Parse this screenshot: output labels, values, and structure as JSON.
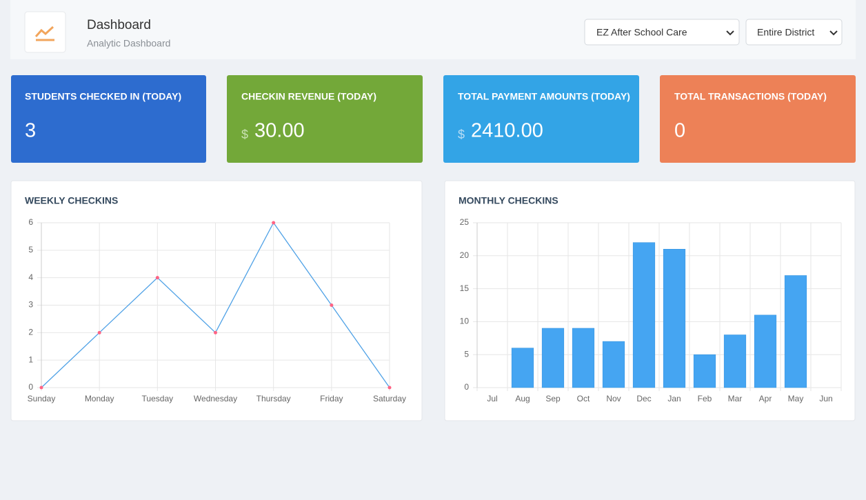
{
  "header": {
    "title": "Dashboard",
    "subtitle": "Analytic Dashboard"
  },
  "filters": [
    "EZ After School Care",
    "Entire District"
  ],
  "cards": [
    {
      "title": "STUDENTS CHECKED IN (TODAY)",
      "value": "3"
    },
    {
      "title": "CHECKIN REVENUE (TODAY)",
      "currency": "$",
      "value": "30.00"
    },
    {
      "title": "TOTAL PAYMENT AMOUNTS (TODAY)",
      "currency": "$",
      "value": "2410.00"
    },
    {
      "title": "TOTAL TRANSACTIONS (TODAY)",
      "value": "0"
    }
  ],
  "chart_data": [
    {
      "type": "line",
      "title": "WEEKLY CHECKINS",
      "categories": [
        "Sunday",
        "Monday",
        "Tuesday",
        "Wednesday",
        "Thursday",
        "Friday",
        "Saturday"
      ],
      "values": [
        0,
        2,
        4,
        2,
        6,
        3,
        0
      ],
      "color": "#4ea1e6",
      "point_color": "#ff6384",
      "ylim": [
        0,
        6
      ],
      "yticks": [
        0,
        1,
        2,
        3,
        4,
        5,
        6
      ],
      "grid": true
    },
    {
      "type": "bar",
      "title": "MONTHLY CHECKINS",
      "categories": [
        "Jul",
        "Aug",
        "Sep",
        "Oct",
        "Nov",
        "Dec",
        "Jan",
        "Feb",
        "Mar",
        "Apr",
        "May",
        "Jun"
      ],
      "values": [
        0,
        6,
        9,
        9,
        7,
        22,
        21,
        5,
        8,
        11,
        17,
        0
      ],
      "color": "#45a5f2",
      "ylim": [
        0,
        25
      ],
      "yticks": [
        0,
        5,
        10,
        15,
        20,
        25
      ],
      "grid": true
    }
  ]
}
